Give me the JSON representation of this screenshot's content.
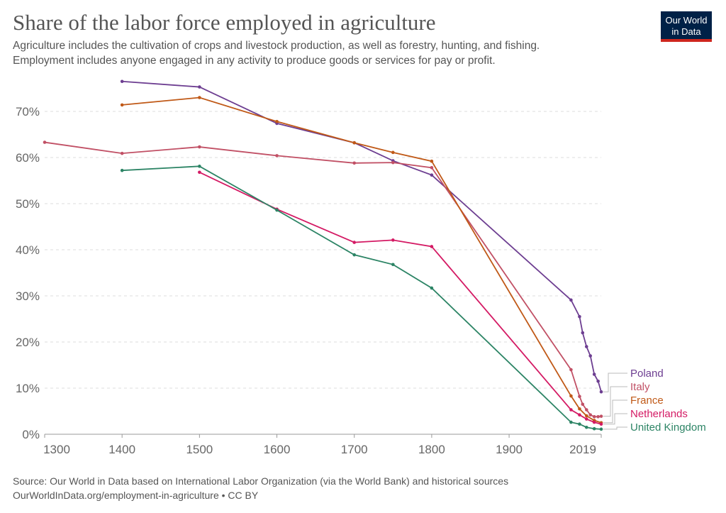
{
  "header": {
    "title": "Share of the labor force employed in agriculture",
    "subtitle1": "Agriculture includes the cultivation of crops and livestock production, as well as forestry, hunting, and fishing.",
    "subtitle2": "Employment includes anyone engaged in any activity to produce goods or services for pay or profit.",
    "logo": "Our World in Data"
  },
  "footer": {
    "source": "Source: Our World in Data based on International Labor Organization (via the World Bank) and historical sources",
    "url": "OurWorldInData.org/employment-in-agriculture • CC BY"
  },
  "chart_data": {
    "type": "line",
    "title": "Share of the labor force employed in agriculture",
    "xlim": [
      1300,
      2019
    ],
    "ylim": [
      0,
      75
    ],
    "xticks": [
      1300,
      1400,
      1500,
      1600,
      1700,
      1800,
      1900,
      2019
    ],
    "yticks": [
      0,
      10,
      20,
      30,
      40,
      50,
      60,
      70
    ],
    "yunit": "%",
    "grid": "horizontal dashed",
    "legend": "right end labels",
    "series": [
      {
        "name": "Poland",
        "color": "#6d3e91",
        "x": [
          1400,
          1500,
          1600,
          1700,
          1750,
          1800,
          1980,
          1991,
          1995,
          2000,
          2005,
          2010,
          2015,
          2019
        ],
        "y": [
          76.5,
          75.3,
          67.4,
          63.2,
          59.3,
          56.2,
          29.1,
          25.5,
          22,
          19,
          17,
          13,
          11.5,
          9.2
        ]
      },
      {
        "name": "Italy",
        "color": "#c15065",
        "x": [
          1300,
          1400,
          1500,
          1600,
          1700,
          1750,
          1800,
          1980,
          1991,
          1995,
          2000,
          2005,
          2010,
          2015,
          2019
        ],
        "y": [
          63.3,
          60.9,
          62.3,
          60.4,
          58.8,
          58.9,
          57.8,
          14,
          8.2,
          6.5,
          5.3,
          4.2,
          3.8,
          3.8,
          3.9
        ]
      },
      {
        "name": "France",
        "color": "#c05917",
        "x": [
          1400,
          1500,
          1600,
          1700,
          1750,
          1800,
          1980,
          1991,
          2000,
          2010,
          2019
        ],
        "y": [
          71.4,
          73,
          67.8,
          63.2,
          61.1,
          59.2,
          8.3,
          5.5,
          4,
          3,
          2.5
        ]
      },
      {
        "name": "Netherlands",
        "color": "#d41a64",
        "x": [
          1500,
          1600,
          1700,
          1750,
          1800,
          1980,
          1991,
          2000,
          2010,
          2019
        ],
        "y": [
          56.8,
          48.8,
          41.6,
          42.1,
          40.7,
          5.3,
          4.2,
          3.3,
          2.6,
          2.2
        ]
      },
      {
        "name": "United Kingdom",
        "color": "#2c8465",
        "x": [
          1400,
          1500,
          1600,
          1700,
          1750,
          1800,
          1980,
          1991,
          2000,
          2010,
          2019
        ],
        "y": [
          57.2,
          58.1,
          48.6,
          38.9,
          36.8,
          31.7,
          2.6,
          2.2,
          1.5,
          1.2,
          1.1
        ]
      }
    ]
  }
}
